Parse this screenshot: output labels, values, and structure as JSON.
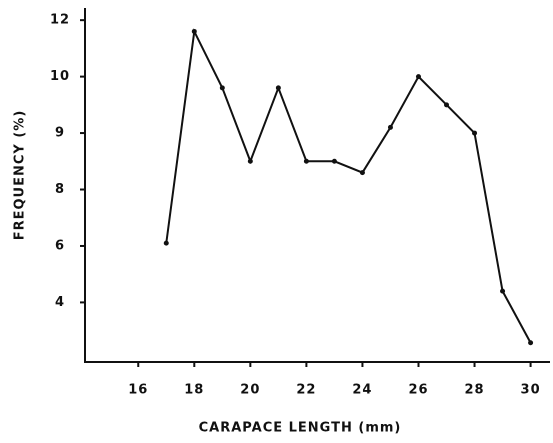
{
  "chart_data": {
    "type": "line",
    "x_label": "CARAPACE LENGTH (mm)",
    "y_label": "FREQUENCY (%)",
    "x": [
      17,
      18,
      19,
      20,
      21,
      22,
      23,
      24,
      25,
      26,
      27,
      28,
      29,
      30
    ],
    "series": [
      {
        "color": "#111111",
        "values": [
          6.1,
          11.6,
          9.8,
          8.5,
          9.8,
          8.5,
          8.5,
          8.3,
          9.1,
          10.0,
          9.5,
          9.0,
          4.4,
          2.6
        ]
      }
    ],
    "xlim": [
      14.1,
      30.8
    ],
    "xticks": [
      16,
      18,
      20,
      22,
      24,
      26,
      28,
      30
    ],
    "ylim": [
      2,
      12.3
    ],
    "yticks": [
      12,
      10,
      9,
      8,
      6,
      4
    ]
  }
}
